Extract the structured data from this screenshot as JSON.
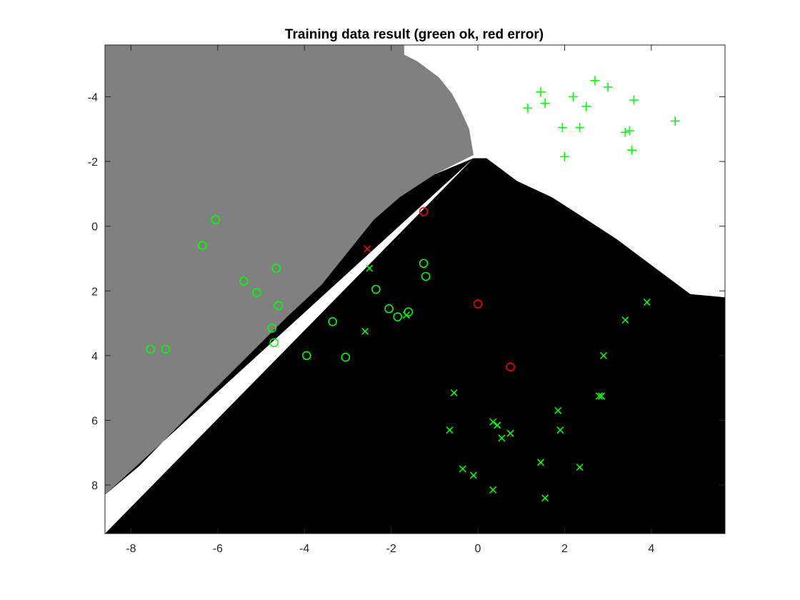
{
  "chart_data": {
    "type": "scatter",
    "title": "Training data result (green ok, red error)",
    "xlabel": "",
    "ylabel": "",
    "xlim": [
      -8.6,
      5.7
    ],
    "ylim": [
      -5.6,
      9.5
    ],
    "y_reversed": true,
    "grid": false,
    "legend": "none",
    "x_ticks": [
      "-8",
      "-6",
      "-4",
      "-2",
      "0",
      "2",
      "4"
    ],
    "x_tick_values": [
      -8,
      -6,
      -4,
      -2,
      0,
      2,
      4
    ],
    "y_ticks": [
      "-4",
      "-2",
      "0",
      "2",
      "4",
      "6",
      "8"
    ],
    "y_tick_values": [
      -4,
      -2,
      0,
      2,
      4,
      6,
      8
    ],
    "colors": {
      "ok": "#00ff00",
      "error": "#ff0000",
      "region_gray": "#808080",
      "region_white": "#ffffff",
      "region_black": "#000000"
    },
    "regions": [
      {
        "label": "gray",
        "color": "#808080"
      },
      {
        "label": "white",
        "color": "#ffffff"
      },
      {
        "label": "black",
        "color": "#000000"
      }
    ],
    "region_boundary_gray_white": [
      [
        -1.7,
        -5.6
      ],
      [
        -1.7,
        -5.3
      ],
      [
        -1.4,
        -5.1
      ],
      [
        -0.9,
        -4.6
      ],
      [
        -0.6,
        -4.1
      ],
      [
        -0.4,
        -3.6
      ],
      [
        -0.2,
        -3.0
      ],
      [
        -0.1,
        -2.2
      ]
    ],
    "region_boundary_white_black": [
      [
        -0.1,
        -2.1
      ],
      [
        0.2,
        -2.1
      ],
      [
        0.9,
        -1.4
      ],
      [
        1.7,
        -0.9
      ],
      [
        2.4,
        -0.3
      ],
      [
        3.2,
        0.4
      ],
      [
        4.1,
        1.3
      ],
      [
        4.9,
        2.1
      ],
      [
        5.7,
        2.2
      ]
    ],
    "region_boundary_gray_black": [
      [
        -0.1,
        -2.1
      ],
      [
        -1.0,
        -1.6
      ],
      [
        -1.8,
        -0.9
      ],
      [
        -2.4,
        -0.2
      ],
      [
        -3.0,
        0.8
      ],
      [
        -3.6,
        1.8
      ],
      [
        -4.4,
        2.8
      ],
      [
        -5.3,
        4.0
      ],
      [
        -6.2,
        5.2
      ],
      [
        -7.0,
        6.3
      ],
      [
        -7.8,
        7.4
      ],
      [
        -8.6,
        8.3
      ]
    ],
    "series": [
      {
        "marker": "o",
        "status": "ok",
        "x": [
          -7.55,
          -7.2,
          -6.35,
          -6.05,
          -5.4,
          -5.1,
          -4.75,
          -4.7,
          -4.65,
          -4.6,
          -3.95,
          -3.35,
          -3.05,
          -2.35,
          -2.05,
          -1.85,
          -1.6,
          -1.25,
          -1.2
        ],
        "y": [
          3.8,
          3.8,
          0.6,
          -0.2,
          1.7,
          2.05,
          3.15,
          3.6,
          1.3,
          2.45,
          4.0,
          2.95,
          4.05,
          1.95,
          2.55,
          2.8,
          2.65,
          1.15,
          1.55
        ]
      },
      {
        "marker": "o",
        "status": "error",
        "x": [
          -1.25,
          0.0,
          0.75
        ],
        "y": [
          -0.45,
          2.4,
          4.35
        ]
      },
      {
        "marker": "+",
        "status": "ok",
        "x": [
          1.15,
          1.45,
          1.55,
          1.95,
          2.0,
          2.2,
          2.35,
          2.5,
          2.7,
          3.0,
          3.4,
          3.5,
          3.55,
          3.6,
          4.55
        ],
        "y": [
          -3.65,
          -4.15,
          -3.8,
          -3.05,
          -2.15,
          -4.0,
          -3.05,
          -3.7,
          -4.5,
          -4.3,
          -2.9,
          -2.95,
          -2.35,
          -3.9,
          -3.25
        ]
      },
      {
        "marker": "x",
        "status": "ok",
        "x": [
          -2.6,
          -2.5,
          -1.65,
          -0.65,
          -0.55,
          -0.35,
          -0.1,
          0.35,
          0.35,
          0.45,
          0.55,
          0.75,
          1.45,
          1.55,
          1.85,
          1.9,
          2.35,
          2.8,
          2.85,
          2.9,
          3.4,
          3.9
        ],
        "y": [
          3.25,
          1.3,
          2.75,
          6.3,
          5.15,
          7.5,
          7.7,
          6.05,
          8.15,
          6.15,
          6.55,
          6.4,
          7.3,
          8.4,
          5.7,
          6.3,
          7.45,
          5.25,
          5.25,
          4.0,
          2.9,
          2.35
        ]
      },
      {
        "marker": "x",
        "status": "error",
        "x": [
          -2.55
        ],
        "y": [
          0.7
        ]
      }
    ]
  }
}
